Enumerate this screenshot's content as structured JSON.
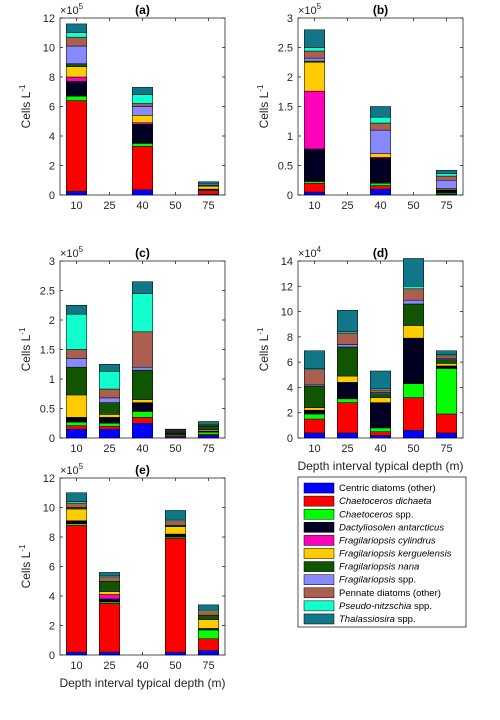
{
  "colors": {
    "Centric diatoms (other)": "#0000ff",
    "Chaetoceros dichaeta": "#ff0000",
    "Chaetoceros spp.": "#00ff00",
    "Dactyliosolen antarcticus": "#000022",
    "Fragilariopsis cylindrus": "#ff00bb",
    "Fragilariopsis kerguelensis": "#ffcc00",
    "Fragilariopsis nana": "#115500",
    "Fragilariopsis spp.": "#8888ff",
    "Pennate diatoms (other)": "#aa5f50",
    "Pseudo-nitzschia spp.": "#11ffcc",
    "Thalassiosira spp.": "#117788"
  },
  "legend": {
    "entries": [
      {
        "text": "Centric diatoms (other)",
        "italic": false
      },
      {
        "text": "Chaetoceros dichaeta",
        "italic": true
      },
      {
        "text": "Chaetoceros",
        "suffix": " spp.",
        "italic": true
      },
      {
        "text": "Dactyliosolen antarcticus",
        "italic": true
      },
      {
        "text": "Fragilariopsis cylindrus",
        "italic": true
      },
      {
        "text": "Fragilariopsis kerguelensis",
        "italic": true
      },
      {
        "text": "Fragilariopsis nana",
        "italic": true
      },
      {
        "text": "Fragilariopsis",
        "suffix": " spp.",
        "italic": true
      },
      {
        "text": "Pennate diatoms (other)",
        "italic": false
      },
      {
        "text": "Pseudo-nitzschia",
        "suffix": " spp.",
        "italic": true
      },
      {
        "text": "Thalassiosira",
        "suffix": " spp.",
        "italic": true
      }
    ]
  },
  "chart_data": [
    {
      "type": "bar",
      "stacked": true,
      "title": "(a)",
      "ylabel": "Cells L",
      "ylabel_sup": "-1",
      "xlabel": "",
      "categories": [
        "10",
        "25",
        "40",
        "50",
        "75"
      ],
      "exponent": "5",
      "ylim": [
        0,
        12
      ],
      "yticks": [
        0,
        2,
        4,
        6,
        8,
        10,
        12
      ],
      "series": [
        {
          "species": "Centric diatoms (other)",
          "values": [
            0.25,
            0,
            0.35,
            0,
            0.05
          ]
        },
        {
          "species": "Chaetoceros dichaeta",
          "values": [
            6.15,
            0,
            2.95,
            0,
            0.25
          ]
        },
        {
          "species": "Chaetoceros spp.",
          "values": [
            0.3,
            0,
            0.2,
            0,
            0.05
          ]
        },
        {
          "species": "Dactyliosolen antarcticus",
          "values": [
            1.0,
            0,
            1.3,
            0,
            0.05
          ]
        },
        {
          "species": "Fragilariopsis cylindrus",
          "values": [
            0.3,
            0,
            0.1,
            0,
            0
          ]
        },
        {
          "species": "Fragilariopsis kerguelensis",
          "values": [
            0.7,
            0,
            0.5,
            0,
            0.2
          ]
        },
        {
          "species": "Fragilariopsis nana",
          "values": [
            0.2,
            0,
            0,
            0,
            0.05
          ]
        },
        {
          "species": "Fragilariopsis spp.",
          "values": [
            1.2,
            0,
            0.6,
            0,
            0.1
          ]
        },
        {
          "species": "Pennate diatoms (other)",
          "values": [
            0.6,
            0,
            0.2,
            0,
            0
          ]
        },
        {
          "species": "Pseudo-nitzschia spp.",
          "values": [
            0.3,
            0,
            0.6,
            0,
            0
          ]
        },
        {
          "species": "Thalassiosira spp.",
          "values": [
            0.6,
            0,
            0.5,
            0,
            0.15
          ]
        }
      ]
    },
    {
      "type": "bar",
      "stacked": true,
      "title": "(b)",
      "ylabel": "Cells L",
      "ylabel_sup": "-1",
      "xlabel": "",
      "categories": [
        "10",
        "25",
        "40",
        "50",
        "75"
      ],
      "exponent": "5",
      "ylim": [
        0,
        3
      ],
      "yticks": [
        0,
        0.5,
        1,
        1.5,
        2,
        2.5,
        3
      ],
      "series": [
        {
          "species": "Centric diatoms (other)",
          "values": [
            0.05,
            0,
            0.1,
            0,
            0.01
          ]
        },
        {
          "species": "Chaetoceros dichaeta",
          "values": [
            0.15,
            0,
            0.06,
            0,
            0.01
          ]
        },
        {
          "species": "Chaetoceros spp.",
          "values": [
            0.03,
            0,
            0.04,
            0,
            0.02
          ]
        },
        {
          "species": "Dactyliosolen antarcticus",
          "values": [
            0.55,
            0,
            0.42,
            0,
            0.05
          ]
        },
        {
          "species": "Fragilariopsis cylindrus",
          "values": [
            0.98,
            0,
            0.02,
            0,
            0
          ]
        },
        {
          "species": "Fragilariopsis kerguelensis",
          "values": [
            0.49,
            0,
            0.06,
            0,
            0.02
          ]
        },
        {
          "species": "Fragilariopsis nana",
          "values": [
            0.02,
            0,
            0,
            0,
            0
          ]
        },
        {
          "species": "Fragilariopsis spp.",
          "values": [
            0.05,
            0,
            0.4,
            0,
            0.14
          ]
        },
        {
          "species": "Pennate diatoms (other)",
          "values": [
            0.12,
            0,
            0.12,
            0,
            0.07
          ]
        },
        {
          "species": "Pseudo-nitzschia spp.",
          "values": [
            0.06,
            0,
            0.1,
            0,
            0.04
          ]
        },
        {
          "species": "Thalassiosira spp.",
          "values": [
            0.3,
            0,
            0.18,
            0,
            0.06
          ]
        }
      ]
    },
    {
      "type": "bar",
      "stacked": true,
      "title": "(c)",
      "ylabel": "Cells L",
      "ylabel_sup": "-1",
      "xlabel": "",
      "categories": [
        "10",
        "25",
        "40",
        "50",
        "75"
      ],
      "exponent": "5",
      "ylim": [
        0,
        3
      ],
      "yticks": [
        0,
        0.5,
        1,
        1.5,
        2,
        2.5,
        3
      ],
      "series": [
        {
          "species": "Centric diatoms (other)",
          "values": [
            0.15,
            0.15,
            0.25,
            0.02,
            0.04
          ]
        },
        {
          "species": "Chaetoceros dichaeta",
          "values": [
            0.06,
            0.05,
            0.1,
            0.02,
            0.02
          ]
        },
        {
          "species": "Chaetoceros spp.",
          "values": [
            0.06,
            0.05,
            0.1,
            0.02,
            0.04
          ]
        },
        {
          "species": "Dactyliosolen antarcticus",
          "values": [
            0.08,
            0.1,
            0.15,
            0.01,
            0.02
          ]
        },
        {
          "species": "Fragilariopsis cylindrus",
          "values": [
            0,
            0,
            0,
            0,
            0
          ]
        },
        {
          "species": "Fragilariopsis kerguelensis",
          "values": [
            0.38,
            0.05,
            0.05,
            0.01,
            0.02
          ]
        },
        {
          "species": "Fragilariopsis nana",
          "values": [
            0.47,
            0.2,
            0.5,
            0.02,
            0.06
          ]
        },
        {
          "species": "Fragilariopsis spp.",
          "values": [
            0.15,
            0.08,
            0.05,
            0.01,
            0.01
          ]
        },
        {
          "species": "Pennate diatoms (other)",
          "values": [
            0.15,
            0.15,
            0.6,
            0.02,
            0.02
          ]
        },
        {
          "species": "Pseudo-nitzschia spp.",
          "values": [
            0.6,
            0.3,
            0.65,
            0.01,
            0.02
          ]
        },
        {
          "species": "Thalassiosira spp.",
          "values": [
            0.15,
            0.12,
            0.2,
            0.01,
            0.03
          ]
        }
      ]
    },
    {
      "type": "bar",
      "stacked": true,
      "title": "(d)",
      "ylabel": "Cells L",
      "ylabel_sup": "-1",
      "xlabel": "Depth interval typical depth (m)",
      "categories": [
        "10",
        "25",
        "40",
        "50",
        "75"
      ],
      "exponent": "4",
      "ylim": [
        0,
        14
      ],
      "yticks": [
        0,
        2,
        4,
        6,
        8,
        10,
        12,
        14
      ],
      "series": [
        {
          "species": "Centric diatoms (other)",
          "values": [
            0.4,
            0.4,
            0.2,
            0.6,
            0.4
          ]
        },
        {
          "species": "Chaetoceros dichaeta",
          "values": [
            1.1,
            2.4,
            0.3,
            2.6,
            1.5
          ]
        },
        {
          "species": "Chaetoceros spp.",
          "values": [
            0.4,
            0.3,
            0.3,
            1.1,
            3.6
          ]
        },
        {
          "species": "Dactyliosolen antarcticus",
          "values": [
            0.3,
            1.3,
            2.0,
            3.6,
            0.2
          ]
        },
        {
          "species": "Fragilariopsis cylindrus",
          "values": [
            0,
            0,
            0,
            0,
            0
          ]
        },
        {
          "species": "Fragilariopsis kerguelensis",
          "values": [
            0.2,
            0.5,
            0.4,
            1.0,
            0.2
          ]
        },
        {
          "species": "Fragilariopsis nana",
          "values": [
            1.7,
            2.3,
            0.3,
            1.7,
            0.3
          ]
        },
        {
          "species": "Fragilariopsis spp.",
          "values": [
            0.1,
            0.2,
            0.1,
            0.3,
            0.1
          ]
        },
        {
          "species": "Pennate diatoms (other)",
          "values": [
            1.2,
            0.9,
            0.2,
            0.9,
            0.2
          ]
        },
        {
          "species": "Pseudo-nitzschia spp.",
          "values": [
            0.1,
            0.1,
            0.1,
            0.2,
            0.1
          ]
        },
        {
          "species": "Thalassiosira spp.",
          "values": [
            1.4,
            1.7,
            1.4,
            2.2,
            0.3
          ]
        }
      ]
    },
    {
      "type": "bar",
      "stacked": true,
      "title": "(e)",
      "ylabel": "Cells L",
      "ylabel_sup": "-1",
      "xlabel": "Depth interval typical depth (m)",
      "categories": [
        "10",
        "25",
        "40",
        "50",
        "75"
      ],
      "exponent": "5",
      "ylim": [
        0,
        12
      ],
      "yticks": [
        0,
        2,
        4,
        6,
        8,
        10,
        12
      ],
      "series": [
        {
          "species": "Centric diatoms (other)",
          "values": [
            0.2,
            0.2,
            0,
            0.2,
            0.3
          ]
        },
        {
          "species": "Chaetoceros dichaeta",
          "values": [
            8.6,
            3.3,
            0,
            7.7,
            0.8
          ]
        },
        {
          "species": "Chaetoceros spp.",
          "values": [
            0.1,
            0.1,
            0,
            0.1,
            0.6
          ]
        },
        {
          "species": "Dactyliosolen antarcticus",
          "values": [
            0.2,
            0.2,
            0,
            0.2,
            0.1
          ]
        },
        {
          "species": "Fragilariopsis cylindrus",
          "values": [
            0,
            0.3,
            0,
            0,
            0
          ]
        },
        {
          "species": "Fragilariopsis kerguelensis",
          "values": [
            0.8,
            0.2,
            0,
            0.5,
            0.6
          ]
        },
        {
          "species": "Fragilariopsis nana",
          "values": [
            0.1,
            0.7,
            0,
            0.1,
            0.3
          ]
        },
        {
          "species": "Fragilariopsis spp.",
          "values": [
            0,
            0,
            0,
            0,
            0
          ]
        },
        {
          "species": "Pennate diatoms (other)",
          "values": [
            0.3,
            0.3,
            0,
            0.3,
            0.3
          ]
        },
        {
          "species": "Pseudo-nitzschia spp.",
          "values": [
            0.1,
            0.1,
            0,
            0.1,
            0.1
          ]
        },
        {
          "species": "Thalassiosira spp.",
          "values": [
            0.6,
            0.2,
            0,
            0.6,
            0.3
          ]
        }
      ]
    }
  ]
}
